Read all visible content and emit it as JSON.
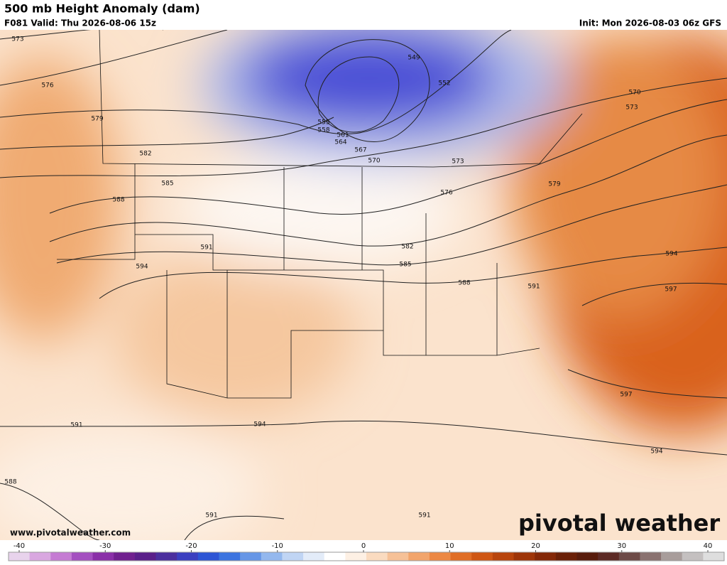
{
  "header": {
    "title": "500 mb Height Anomaly (dam)",
    "valid": "F081 Valid: Thu 2026-08-06 15z",
    "init": "Init: Mon 2026-08-03 06z GFS"
  },
  "map": {
    "contour_labels": [
      573,
      576,
      579,
      582,
      585,
      588,
      591,
      594,
      555,
      558,
      561,
      564,
      567,
      570,
      573,
      576,
      549,
      552,
      570,
      573,
      579,
      582,
      585,
      588,
      591,
      594,
      597,
      597,
      594,
      594,
      591,
      588,
      591,
      591
    ]
  },
  "footer": {
    "website": "www.pivotalweather.com",
    "logo": "pivotal weather"
  },
  "colorbar": {
    "lim": [
      -40,
      40
    ],
    "ticks": [
      -40,
      -30,
      -20,
      -10,
      0,
      10,
      20,
      30,
      40
    ]
  }
}
